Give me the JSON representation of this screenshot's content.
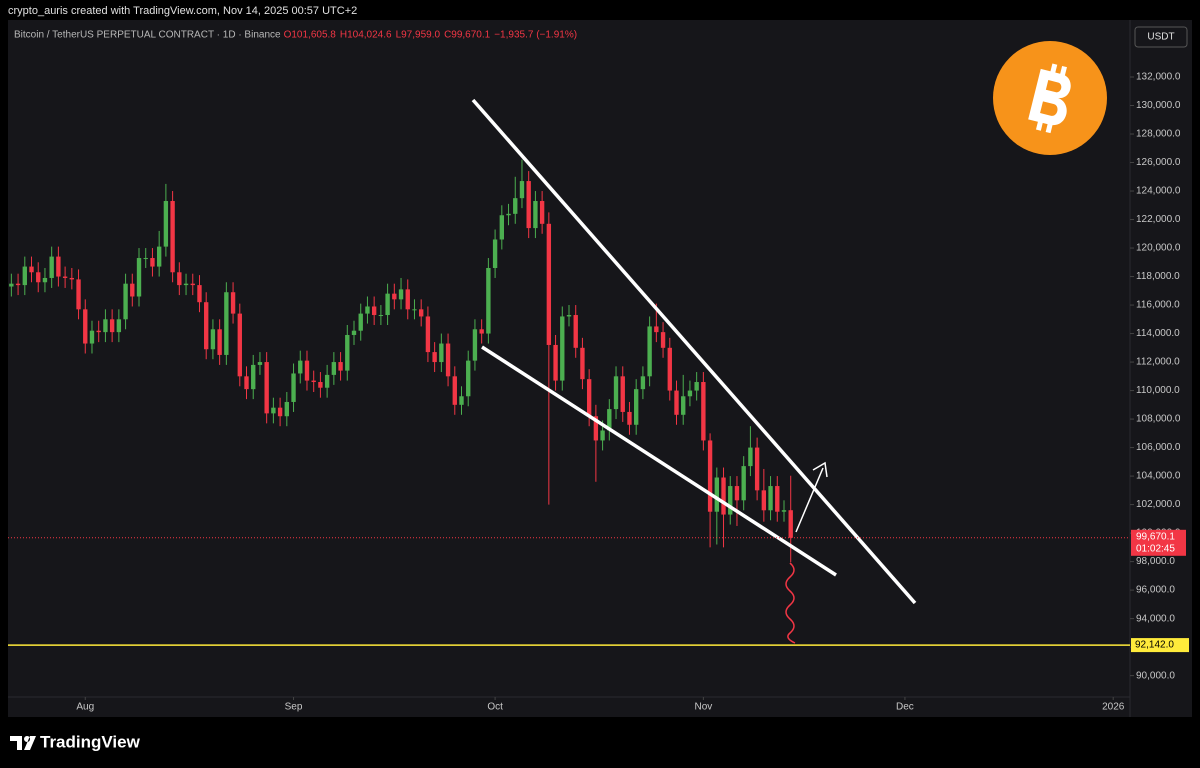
{
  "watermark": "crypto_auris created with TradingView.com, Nov 14, 2025 00:57 UTC+2",
  "brand": "TradingView",
  "chart_data": {
    "type": "candlestick",
    "title": "Bitcoin / TetherUS PERPETUAL CONTRACT · 1D · Binance",
    "ohlc_labels": [
      "O101,605.8",
      "H104,024.6",
      "L97,959.0",
      "C99,670.1"
    ],
    "change_label": "−1,935.7 (−1.91%)",
    "currency": "USDT",
    "up_color": "#4caf50",
    "down_color": "#f23645",
    "grid": false,
    "xlim": [
      -0.5,
      166.5
    ],
    "xticks": [
      {
        "value": 11,
        "label": "Aug"
      },
      {
        "value": 42,
        "label": "Sep"
      },
      {
        "value": 72,
        "label": "Oct"
      },
      {
        "value": 103,
        "label": "Nov"
      },
      {
        "value": 133,
        "label": "Dec"
      },
      {
        "value": 164,
        "label": "2026"
      }
    ],
    "ylim": [
      88500,
      136000
    ],
    "yticks": [
      {
        "value": 90000,
        "label": "90,000.0"
      },
      {
        "value": 92000,
        "label": "92,000.0"
      },
      {
        "value": 94000,
        "label": "94,000.0"
      },
      {
        "value": 96000,
        "label": "96,000.0"
      },
      {
        "value": 98000,
        "label": "98,000.0"
      },
      {
        "value": 100000,
        "label": "100,000.0"
      },
      {
        "value": 102000,
        "label": "102,000.0"
      },
      {
        "value": 104000,
        "label": "104,000.0"
      },
      {
        "value": 106000,
        "label": "106,000.0"
      },
      {
        "value": 108000,
        "label": "108,000.0"
      },
      {
        "value": 110000,
        "label": "110,000.0"
      },
      {
        "value": 112000,
        "label": "112,000.0"
      },
      {
        "value": 114000,
        "label": "114,000.0"
      },
      {
        "value": 116000,
        "label": "116,000.0"
      },
      {
        "value": 118000,
        "label": "118,000.0"
      },
      {
        "value": 120000,
        "label": "120,000.0"
      },
      {
        "value": 122000,
        "label": "122,000.0"
      },
      {
        "value": 124000,
        "label": "124,000.0"
      },
      {
        "value": 126000,
        "label": "126,000.0"
      },
      {
        "value": 128000,
        "label": "128,000.0"
      },
      {
        "value": 130000,
        "label": "130,000.0"
      },
      {
        "value": 132000,
        "label": "132,000.0"
      }
    ],
    "open": [
      117300,
      117500,
      117400,
      118700,
      118300,
      117600,
      117900,
      119400,
      118000,
      117900,
      117800,
      115700,
      113300,
      114200,
      114100,
      115000,
      114100,
      115000,
      117500,
      116600,
      119300,
      119300,
      118700,
      120100,
      123300,
      118300,
      117400,
      117500,
      117400,
      116200,
      112900,
      114300,
      112500,
      116900,
      115400,
      111000,
      110100,
      111800,
      112000,
      108400,
      108800,
      108200,
      109200,
      111200,
      112100,
      110700,
      110600,
      110200,
      111100,
      112000,
      111400,
      113900,
      114200,
      115400,
      115900,
      115300,
      115300,
      116800,
      116400,
      117100,
      115700,
      115700,
      115200,
      112700,
      112000,
      113300,
      111000,
      109000,
      109600,
      112100,
      114300,
      114000,
      118600,
      120600,
      122300,
      122400,
      123500,
      124700,
      121400,
      123300,
      121700,
      113200,
      110700,
      115200,
      115300,
      113000,
      110800,
      108200,
      106500,
      107200,
      108700,
      111000,
      108500,
      107600,
      110100,
      111000,
      114500,
      114100,
      113000,
      110000,
      108300,
      109600,
      110000,
      110600,
      106500,
      101500,
      103900,
      101300,
      103300,
      102300,
      104700,
      106000,
      103000,
      101600,
      103300,
      101500,
      101605.8
    ],
    "high": [
      118200,
      118200,
      119400,
      119400,
      119000,
      118600,
      120100,
      120100,
      118700,
      118600,
      118500,
      116400,
      114900,
      114900,
      115700,
      115700,
      115700,
      118200,
      118200,
      120000,
      120000,
      120000,
      121200,
      124500,
      124000,
      119000,
      118200,
      118200,
      118100,
      116900,
      115000,
      115000,
      117600,
      117600,
      116100,
      111700,
      112500,
      112700,
      112700,
      109500,
      109500,
      109900,
      111900,
      112800,
      112800,
      111400,
      111300,
      111800,
      112700,
      112700,
      114600,
      114900,
      116100,
      116600,
      116600,
      116000,
      117500,
      117500,
      117900,
      117800,
      116400,
      116400,
      115900,
      113400,
      114000,
      114000,
      111700,
      110300,
      112800,
      115000,
      115000,
      119300,
      121300,
      123000,
      123100,
      125000,
      126200,
      125400,
      124000,
      124000,
      122500,
      113900,
      115900,
      116000,
      116000,
      113700,
      111500,
      109000,
      107900,
      109400,
      111700,
      111700,
      109200,
      110800,
      111700,
      115200,
      116100,
      114800,
      113700,
      110700,
      111100,
      110700,
      111300,
      111300,
      107000,
      104600,
      104600,
      104000,
      104000,
      105400,
      107500,
      106700,
      104500,
      104000,
      104000,
      102300,
      104024.6
    ],
    "low": [
      116600,
      116700,
      116700,
      117600,
      116900,
      116900,
      117200,
      117300,
      117200,
      117100,
      115000,
      112600,
      112600,
      113400,
      113400,
      113400,
      113400,
      114300,
      115900,
      115900,
      118600,
      118000,
      118000,
      119400,
      117600,
      116700,
      116700,
      116700,
      115500,
      112200,
      112200,
      111800,
      111800,
      114700,
      110300,
      109400,
      109400,
      111100,
      107700,
      107700,
      107500,
      107500,
      108500,
      110500,
      110000,
      109900,
      109500,
      109500,
      110400,
      110700,
      110700,
      113200,
      113500,
      114700,
      114600,
      114600,
      114600,
      115700,
      115700,
      115000,
      115000,
      114500,
      112000,
      111300,
      111300,
      110300,
      108300,
      108300,
      108900,
      111400,
      113300,
      113300,
      117900,
      119900,
      121600,
      121700,
      122800,
      120700,
      120700,
      121000,
      102000,
      110000,
      110000,
      114500,
      112300,
      110100,
      107500,
      103600,
      105800,
      106500,
      108000,
      107800,
      106900,
      106900,
      109400,
      110300,
      113400,
      112300,
      109300,
      107600,
      107600,
      108900,
      109300,
      105800,
      99000,
      99200,
      99000,
      100600,
      100500,
      101600,
      104000,
      102300,
      100800,
      100900,
      100800,
      100800,
      97959.0
    ],
    "close": [
      117500,
      117400,
      118700,
      118300,
      117600,
      117900,
      119400,
      118000,
      117900,
      117800,
      115700,
      113300,
      114200,
      114100,
      115000,
      114100,
      115000,
      117500,
      116600,
      119300,
      119300,
      118700,
      120100,
      123300,
      118300,
      117400,
      117500,
      117400,
      116200,
      112900,
      114300,
      112500,
      116900,
      115400,
      111000,
      110100,
      111800,
      112000,
      108400,
      108800,
      108200,
      109200,
      111200,
      112100,
      110700,
      110600,
      110200,
      111100,
      112000,
      111400,
      113900,
      114200,
      115400,
      115900,
      115300,
      115300,
      116800,
      116400,
      117100,
      115700,
      115700,
      115200,
      112700,
      112000,
      113300,
      111000,
      109000,
      109600,
      112100,
      114300,
      114000,
      118600,
      120600,
      122300,
      122400,
      123500,
      124700,
      121400,
      123300,
      121700,
      113200,
      110700,
      115200,
      115300,
      113000,
      110800,
      108200,
      106500,
      107200,
      108700,
      111000,
      108500,
      107600,
      110100,
      111000,
      114500,
      114100,
      113000,
      110000,
      108300,
      109600,
      110000,
      110600,
      106500,
      101500,
      103900,
      101300,
      103300,
      102300,
      104700,
      106000,
      103000,
      101600,
      103300,
      101500,
      101605.8,
      99670.1
    ],
    "last_price": {
      "value": 99670.1,
      "label": "99,670.1",
      "countdown": "01:02:45",
      "color": "#f23645"
    },
    "hlines": [
      {
        "value": 92142,
        "label": "92,142.0",
        "color": "#ffeb3b"
      }
    ]
  }
}
